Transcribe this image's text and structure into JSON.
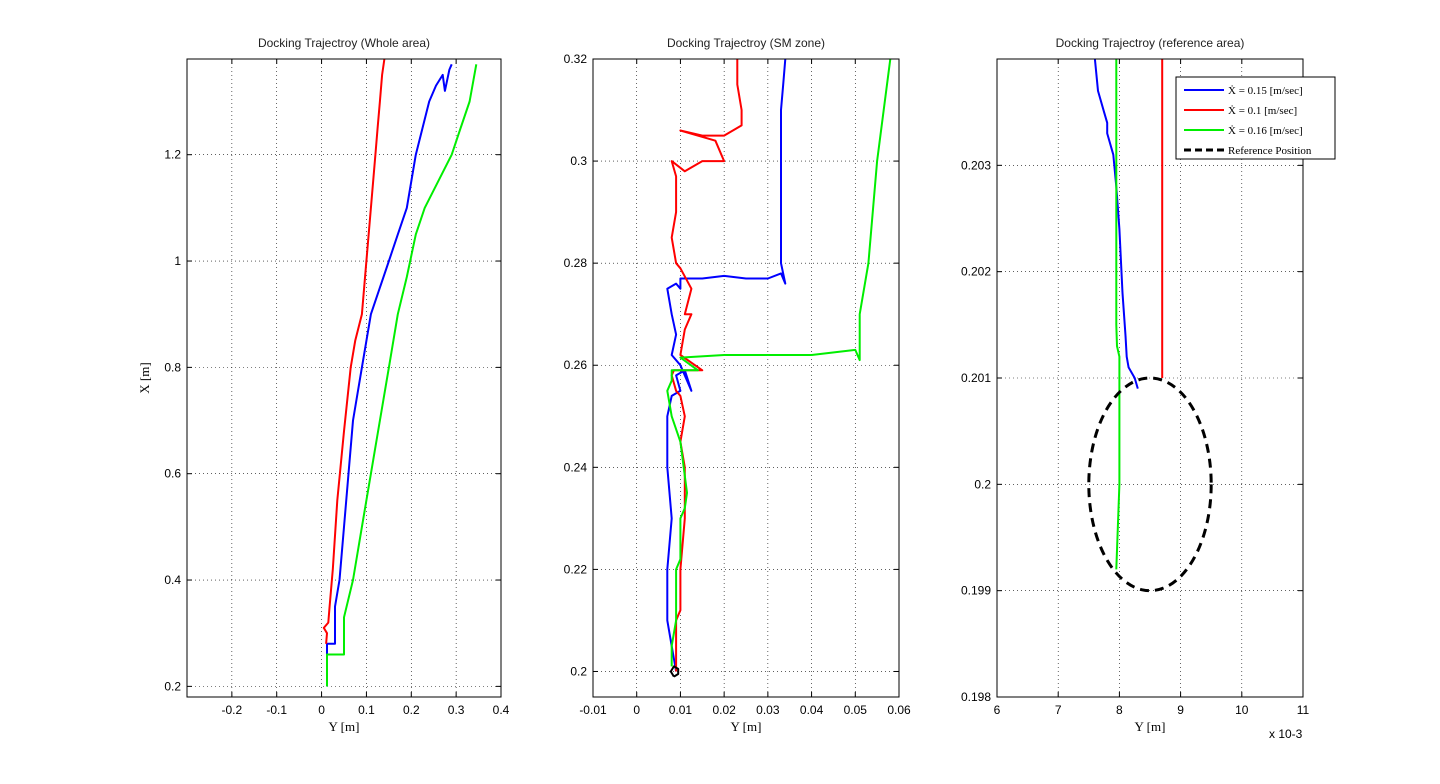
{
  "chart_data": [
    {
      "type": "line",
      "title": "Docking Trajectroy (Whole area)",
      "xlabel": "Y [m]",
      "ylabel": "X [m]",
      "xlim": [
        -0.3,
        0.4
      ],
      "ylim": [
        0.18,
        1.38
      ],
      "xticks": [
        -0.2,
        -0.1,
        0,
        0.1,
        0.2,
        0.3,
        0.4
      ],
      "xtick_labels": [
        "-0.2",
        "-0.1",
        "0",
        "0.1",
        "0.2",
        "0.3",
        "0.4"
      ],
      "yticks": [
        0.2,
        0.4,
        0.6,
        0.8,
        1.0,
        1.2
      ],
      "ytick_labels": [
        "0.2",
        "0.4",
        "0.6",
        "0.8",
        "1",
        "1.2"
      ],
      "grid": true,
      "series": [
        {
          "color": "#0000ff",
          "x": [
            0.012,
            0.012,
            0.03,
            0.03,
            0.04,
            0.05,
            0.06,
            0.07,
            0.09,
            0.11,
            0.13,
            0.15,
            0.17,
            0.19,
            0.21,
            0.225,
            0.24,
            0.255,
            0.27,
            0.275,
            0.285,
            0.29
          ],
          "y": [
            0.2,
            0.28,
            0.28,
            0.35,
            0.4,
            0.5,
            0.6,
            0.7,
            0.8,
            0.9,
            0.95,
            1.0,
            1.05,
            1.1,
            1.2,
            1.25,
            1.3,
            1.33,
            1.35,
            1.32,
            1.36,
            1.37
          ]
        },
        {
          "color": "#ff0000",
          "x": [
            0.01,
            0.012,
            0.005,
            0.015,
            0.018,
            0.025,
            0.035,
            0.05,
            0.065,
            0.075,
            0.09,
            0.1,
            0.11,
            0.12,
            0.125,
            0.13,
            0.135,
            0.14
          ],
          "y": [
            0.28,
            0.3,
            0.31,
            0.32,
            0.35,
            0.42,
            0.55,
            0.68,
            0.8,
            0.85,
            0.9,
            1.0,
            1.1,
            1.2,
            1.25,
            1.3,
            1.35,
            1.38
          ]
        },
        {
          "color": "#00ee00",
          "x": [
            0.012,
            0.012,
            0.05,
            0.05,
            0.07,
            0.09,
            0.11,
            0.13,
            0.15,
            0.17,
            0.19,
            0.21,
            0.23,
            0.26,
            0.29,
            0.31,
            0.33,
            0.345
          ],
          "y": [
            0.2,
            0.26,
            0.26,
            0.33,
            0.4,
            0.5,
            0.6,
            0.7,
            0.8,
            0.9,
            0.97,
            1.05,
            1.1,
            1.15,
            1.2,
            1.25,
            1.3,
            1.37
          ]
        }
      ]
    },
    {
      "type": "line",
      "title": "Docking Trajectroy (SM zone)",
      "xlabel": "Y [m]",
      "ylabel": "",
      "xlim": [
        -0.01,
        0.06
      ],
      "ylim": [
        0.195,
        0.32
      ],
      "xticks": [
        -0.01,
        0,
        0.01,
        0.02,
        0.03,
        0.04,
        0.05,
        0.06
      ],
      "xtick_labels": [
        "-0.01",
        "0",
        "0.01",
        "0.02",
        "0.03",
        "0.04",
        "0.05",
        "0.06"
      ],
      "yticks": [
        0.2,
        0.22,
        0.24,
        0.26,
        0.28,
        0.3,
        0.32
      ],
      "ytick_labels": [
        "0.2",
        "0.22",
        "0.24",
        "0.26",
        "0.28",
        "0.3",
        "0.32"
      ],
      "grid": true,
      "series": [
        {
          "color": "#0000ff",
          "x": [
            0.009,
            0.008,
            0.007,
            0.007,
            0.008,
            0.007,
            0.007,
            0.008,
            0.01,
            0.009,
            0.011,
            0.0125,
            0.01,
            0.008,
            0.009,
            0.008,
            0.007,
            0.009,
            0.01,
            0.01,
            0.015,
            0.02,
            0.025,
            0.03,
            0.033,
            0.034,
            0.033,
            0.033,
            0.033,
            0.0335,
            0.034
          ],
          "y": [
            0.2,
            0.205,
            0.21,
            0.22,
            0.23,
            0.24,
            0.25,
            0.254,
            0.255,
            0.258,
            0.259,
            0.255,
            0.26,
            0.262,
            0.266,
            0.27,
            0.275,
            0.276,
            0.275,
            0.277,
            0.277,
            0.2775,
            0.277,
            0.277,
            0.278,
            0.276,
            0.28,
            0.3,
            0.31,
            0.315,
            0.32
          ]
        },
        {
          "color": "#ff0000",
          "x": [
            0.009,
            0.009,
            0.01,
            0.01,
            0.011,
            0.011,
            0.01,
            0.011,
            0.01,
            0.009,
            0.008,
            0.0085,
            0.012,
            0.015,
            0.01,
            0.011,
            0.0125,
            0.011,
            0.0125,
            0.01,
            0.009,
            0.008,
            0.009,
            0.009,
            0.009,
            0.008,
            0.011,
            0.015,
            0.02,
            0.018,
            0.01,
            0.015,
            0.02,
            0.024,
            0.024,
            0.023,
            0.023
          ],
          "y": [
            0.2,
            0.21,
            0.212,
            0.22,
            0.23,
            0.24,
            0.245,
            0.25,
            0.254,
            0.255,
            0.258,
            0.259,
            0.259,
            0.259,
            0.262,
            0.267,
            0.27,
            0.27,
            0.275,
            0.279,
            0.28,
            0.285,
            0.29,
            0.295,
            0.297,
            0.3,
            0.298,
            0.3,
            0.3,
            0.304,
            0.306,
            0.305,
            0.305,
            0.307,
            0.31,
            0.315,
            0.32
          ]
        },
        {
          "color": "#00ee00",
          "x": [
            0.008,
            0.008,
            0.009,
            0.009,
            0.01,
            0.01,
            0.011,
            0.0115,
            0.01,
            0.008,
            0.007,
            0.008,
            0.008,
            0.014,
            0.01,
            0.02,
            0.03,
            0.04,
            0.05,
            0.051,
            0.051,
            0.053,
            0.055,
            0.058
          ],
          "y": [
            0.201,
            0.205,
            0.21,
            0.22,
            0.222,
            0.23,
            0.232,
            0.235,
            0.245,
            0.25,
            0.255,
            0.257,
            0.259,
            0.259,
            0.2615,
            0.262,
            0.262,
            0.262,
            0.263,
            0.261,
            0.27,
            0.28,
            0.3,
            0.32
          ]
        },
        {
          "color": "#000000",
          "x": [
            0.0085,
            0.0095,
            0.0095,
            0.0085,
            0.0078,
            0.0085
          ],
          "y": [
            0.199,
            0.1995,
            0.2005,
            0.201,
            0.2,
            0.199
          ]
        }
      ]
    },
    {
      "type": "line",
      "title": "Docking Trajectroy (reference area)",
      "xlabel": "Y [m]",
      "ylabel": "",
      "x_multiplier": "x 10-3",
      "xlim": [
        6,
        11
      ],
      "ylim": [
        0.198,
        0.204
      ],
      "xticks": [
        6,
        7,
        8,
        9,
        10,
        11
      ],
      "xtick_labels": [
        "6",
        "7",
        "8",
        "9",
        "10",
        "11"
      ],
      "yticks": [
        0.198,
        0.199,
        0.2,
        0.201,
        0.202,
        0.203
      ],
      "ytick_labels": [
        "0.198",
        "0.199",
        "0.2",
        "0.201",
        "0.202",
        "0.203"
      ],
      "grid": true,
      "legend": {
        "position": "top-right",
        "entries": [
          {
            "label": "Ẋ = 0.15 [m/sec]",
            "color": "#0000ff",
            "style": "solid"
          },
          {
            "label": "Ẋ = 0.1 [m/sec]",
            "color": "#ff0000",
            "style": "solid"
          },
          {
            "label": "Ẋ = 0.16 [m/sec]",
            "color": "#00ee00",
            "style": "solid"
          },
          {
            "label": "Reference Position",
            "color": "#000000",
            "style": "dashed"
          }
        ]
      },
      "series": [
        {
          "color": "#0000ff",
          "x": [
            7.6,
            7.65,
            7.75,
            7.8,
            7.8,
            7.9,
            7.95,
            8.0,
            8.05,
            8.1,
            8.12,
            8.15,
            8.25,
            8.3
          ],
          "y": [
            0.204,
            0.2037,
            0.2035,
            0.2034,
            0.2033,
            0.2031,
            0.2028,
            0.2024,
            0.2018,
            0.2014,
            0.2012,
            0.2011,
            0.201,
            0.2009
          ]
        },
        {
          "color": "#ff0000",
          "x": [
            8.7,
            8.7,
            8.7,
            8.7,
            8.7
          ],
          "y": [
            0.201,
            0.2015,
            0.202,
            0.203,
            0.204
          ]
        },
        {
          "color": "#00ee00",
          "x": [
            7.95,
            7.95,
            7.95,
            7.96,
            8.0,
            8.0,
            8.0,
            7.95
          ],
          "y": [
            0.2045,
            0.203,
            0.2015,
            0.2013,
            0.2012,
            0.201,
            0.2,
            0.1992
          ]
        },
        {
          "color": "#000000",
          "style": "dashed",
          "ellipse": {
            "cx": 8.5,
            "cy": 0.2,
            "rx": 1.0,
            "ry": 0.001
          }
        }
      ]
    }
  ]
}
